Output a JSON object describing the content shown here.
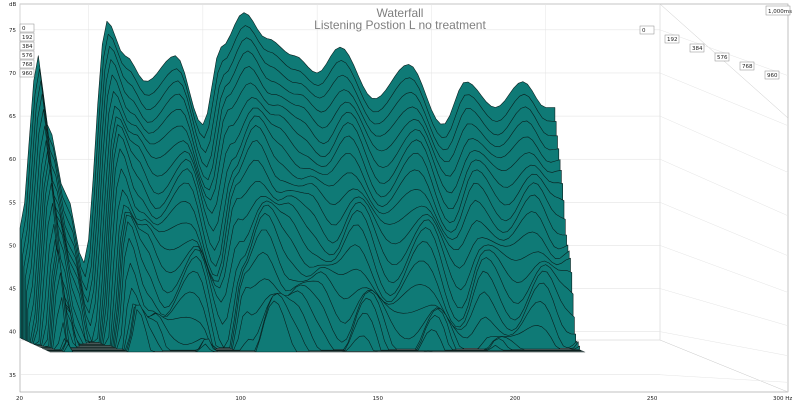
{
  "chart_data": {
    "type": "area",
    "title": "Waterfall",
    "subtitle": "Listening Postion L no treatment",
    "ylabel": "dB",
    "xlabel_unit": "300 Hz",
    "x_ticks": [
      "20",
      "50",
      "100",
      "150",
      "200",
      "250",
      "300 Hz"
    ],
    "y_ticks": [
      "35",
      "40",
      "45",
      "50",
      "55",
      "60",
      "65",
      "70",
      "75"
    ],
    "time_labels": [
      "0",
      "192",
      "384",
      "576",
      "768",
      "960"
    ],
    "time_max_label": "1,000ms",
    "xlim": [
      20,
      300
    ],
    "ylim": [
      33,
      78
    ],
    "fill_color": "#0f7a76",
    "line_color": "#0a1f1e",
    "grid": true,
    "front_slice": [
      {
        "f": 20,
        "db": 52
      },
      {
        "f": 28,
        "db": 72
      },
      {
        "f": 32,
        "db": 64
      },
      {
        "f": 40,
        "db": 56
      },
      {
        "f": 48,
        "db": 48
      },
      {
        "f": 58,
        "db": 76
      },
      {
        "f": 66,
        "db": 72
      },
      {
        "f": 75,
        "db": 69
      },
      {
        "f": 88,
        "db": 72
      },
      {
        "f": 100,
        "db": 64
      },
      {
        "f": 108,
        "db": 73
      },
      {
        "f": 118,
        "db": 77
      },
      {
        "f": 128,
        "db": 74
      },
      {
        "f": 140,
        "db": 72
      },
      {
        "f": 150,
        "db": 70
      },
      {
        "f": 160,
        "db": 73
      },
      {
        "f": 175,
        "db": 67
      },
      {
        "f": 190,
        "db": 71
      },
      {
        "f": 205,
        "db": 64
      },
      {
        "f": 215,
        "db": 69
      },
      {
        "f": 228,
        "db": 66
      },
      {
        "f": 240,
        "db": 69
      },
      {
        "f": 250,
        "db": 66
      }
    ]
  }
}
